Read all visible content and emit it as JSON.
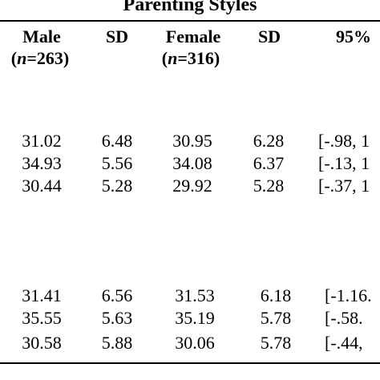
{
  "table": {
    "group_header": "Parenting Styles",
    "headers": {
      "male": "Male",
      "male_n_prefix": "(",
      "male_n_var": "n",
      "male_n_value": "=263)",
      "sd1": "SD",
      "female": "Female",
      "female_n_prefix": "(",
      "female_n_var": "n",
      "female_n_value": "=316)",
      "sd2": "SD",
      "ci": "95%"
    },
    "group1": [
      {
        "male": "31.02",
        "sd1": "6.48",
        "female": "30.95",
        "sd2": "6.28",
        "ci": "[-.98, 1"
      },
      {
        "male": "34.93",
        "sd1": "5.56",
        "female": "34.08",
        "sd2": "6.37",
        "ci": "[-.13, 1"
      },
      {
        "male": "30.44",
        "sd1": "5.28",
        "female": "29.92",
        "sd2": "5.28",
        "ci": "[-.37, 1"
      }
    ],
    "group2": [
      {
        "male": "31.41",
        "sd1": "6.56",
        "female": "31.53",
        "sd2": "6.18",
        "ci": "[-1.16."
      },
      {
        "male": "35.55",
        "sd1": "5.63",
        "female": "35.19",
        "sd2": "5.78",
        "ci": "[-.58."
      },
      {
        "male": "30.58",
        "sd1": "5.88",
        "female": "30.06",
        "sd2": "5.78",
        "ci": "[-.44,"
      }
    ]
  }
}
